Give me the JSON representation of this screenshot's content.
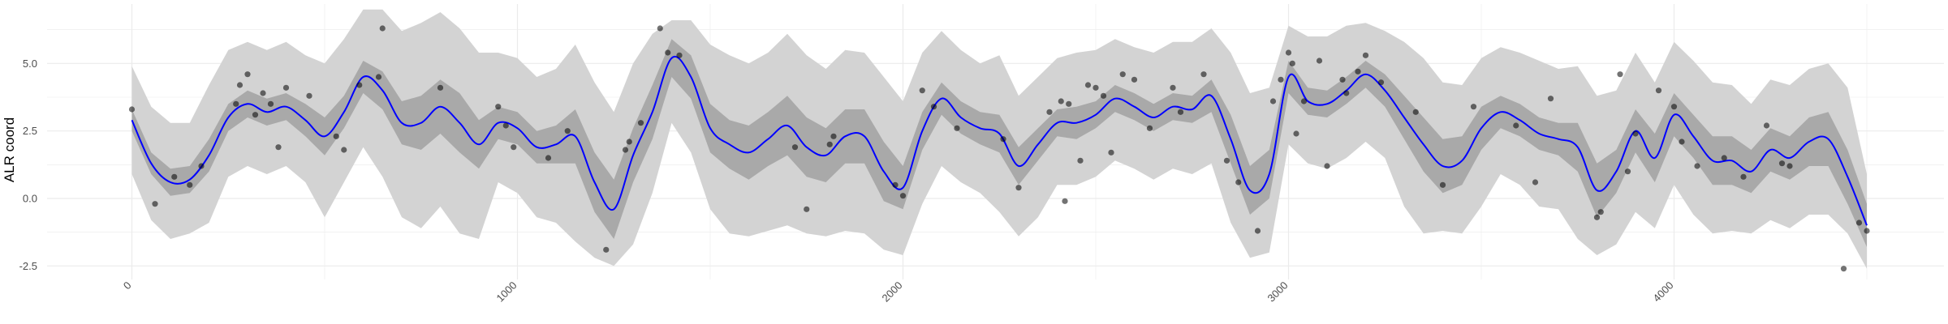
{
  "chart_data": {
    "type": "line",
    "xlabel": "",
    "ylabel": "ALR coord",
    "xlim": [
      -220,
      4700
    ],
    "ylim": [
      -3.0,
      7.2
    ],
    "x_ticks": [
      0,
      1000,
      2000,
      3000,
      4000
    ],
    "x_tick_labels": [
      "0",
      "1000",
      "2000",
      "3000",
      "4000"
    ],
    "y_ticks": [
      -2.5,
      0.0,
      2.5,
      5.0
    ],
    "y_tick_labels": [
      "-2.5",
      "0.0",
      "2.5",
      "5.0"
    ],
    "grid": true,
    "legend": "none",
    "colors": {
      "mean_line": "#0000ff",
      "inner_band": "#a9a9a9",
      "outer_band": "#d3d3d3",
      "points": "#000000",
      "grid": "#ebebeb"
    },
    "series": [
      {
        "role": "posterior-mean",
        "x": [
          0,
          50,
          100,
          150,
          200,
          250,
          300,
          350,
          400,
          450,
          500,
          550,
          600,
          650,
          700,
          750,
          800,
          850,
          900,
          950,
          1000,
          1050,
          1100,
          1150,
          1200,
          1250,
          1300,
          1350,
          1400,
          1450,
          1500,
          1550,
          1600,
          1650,
          1700,
          1750,
          1800,
          1850,
          1900,
          1950,
          2000,
          2050,
          2100,
          2150,
          2200,
          2250,
          2300,
          2350,
          2400,
          2450,
          2500,
          2550,
          2600,
          2650,
          2700,
          2750,
          2800,
          2850,
          2900,
          2950,
          3000,
          3050,
          3100,
          3150,
          3200,
          3250,
          3300,
          3350,
          3400,
          3450,
          3500,
          3550,
          3600,
          3650,
          3700,
          3750,
          3800,
          3850,
          3900,
          3950,
          4000,
          4050,
          4100,
          4150,
          4200,
          4250,
          4300,
          4350,
          4400,
          4450,
          4500
        ],
        "mean": [
          2.9,
          1.3,
          0.6,
          0.7,
          1.6,
          3.0,
          3.5,
          3.2,
          3.4,
          2.9,
          2.3,
          3.2,
          4.5,
          4.0,
          2.8,
          2.8,
          3.4,
          2.8,
          2.0,
          2.8,
          2.6,
          1.9,
          2.0,
          2.3,
          0.6,
          -0.4,
          1.6,
          3.2,
          5.2,
          4.5,
          2.6,
          2.0,
          1.7,
          2.2,
          2.7,
          1.9,
          1.6,
          2.3,
          2.3,
          1.0,
          0.4,
          2.5,
          3.7,
          3.0,
          2.6,
          2.4,
          1.2,
          2.0,
          2.8,
          2.8,
          3.1,
          3.7,
          3.4,
          3.0,
          3.4,
          3.3,
          3.8,
          2.2,
          0.3,
          0.9,
          4.5,
          3.6,
          3.5,
          4.0,
          4.6,
          4.0,
          3.0,
          2.0,
          1.2,
          1.4,
          2.6,
          3.2,
          2.9,
          2.4,
          2.2,
          1.9,
          0.3,
          1.0,
          2.5,
          1.5,
          3.1,
          2.3,
          1.4,
          1.4,
          1.0,
          1.8,
          1.5,
          2.1,
          2.2,
          0.8,
          -1.0
        ],
        "inner_lower": [
          2.5,
          0.9,
          0.1,
          0.2,
          1.0,
          2.5,
          3.0,
          2.7,
          2.9,
          2.3,
          1.6,
          2.6,
          3.9,
          3.3,
          2.0,
          1.8,
          2.4,
          1.7,
          1.1,
          2.2,
          2.0,
          1.3,
          1.3,
          1.3,
          -0.5,
          -1.5,
          0.6,
          2.2,
          4.5,
          3.7,
          1.7,
          1.1,
          0.7,
          1.2,
          1.6,
          0.8,
          0.6,
          1.3,
          1.3,
          -0.1,
          -0.4,
          1.8,
          3.1,
          2.4,
          2.0,
          1.7,
          0.5,
          1.4,
          2.3,
          2.2,
          2.6,
          3.2,
          2.9,
          2.5,
          2.9,
          2.8,
          3.2,
          1.3,
          -0.6,
          0.0,
          3.9,
          3.1,
          3.0,
          3.5,
          4.1,
          3.4,
          2.2,
          1.0,
          0.2,
          0.5,
          1.8,
          2.6,
          2.3,
          1.8,
          1.6,
          1.0,
          -0.7,
          0.2,
          1.7,
          0.6,
          2.3,
          1.5,
          0.5,
          0.5,
          0.2,
          1.0,
          0.7,
          1.2,
          1.2,
          -0.2,
          -1.8
        ],
        "inner_upper": [
          3.3,
          1.7,
          1.1,
          1.2,
          2.2,
          3.5,
          4.0,
          3.7,
          3.9,
          3.5,
          3.0,
          3.8,
          5.1,
          4.7,
          3.6,
          3.8,
          4.4,
          3.9,
          2.9,
          3.4,
          3.2,
          2.5,
          2.7,
          3.3,
          1.7,
          0.7,
          2.6,
          4.2,
          5.9,
          5.3,
          3.5,
          2.9,
          2.7,
          3.2,
          3.8,
          3.0,
          2.6,
          3.3,
          3.3,
          2.1,
          1.2,
          3.2,
          4.3,
          3.6,
          3.2,
          3.1,
          1.9,
          2.6,
          3.3,
          3.4,
          3.6,
          4.2,
          3.9,
          3.5,
          3.9,
          3.8,
          4.4,
          3.1,
          1.2,
          1.8,
          5.1,
          4.1,
          4.0,
          4.5,
          5.1,
          4.6,
          3.8,
          3.0,
          2.2,
          2.3,
          3.4,
          3.8,
          3.5,
          3.0,
          2.8,
          2.8,
          1.3,
          1.8,
          3.3,
          2.4,
          3.9,
          3.1,
          2.3,
          2.3,
          1.8,
          2.6,
          2.3,
          3.0,
          3.2,
          1.8,
          -0.2
        ],
        "outer_lower": [
          0.9,
          -0.8,
          -1.5,
          -1.3,
          -0.9,
          0.8,
          1.2,
          0.9,
          1.2,
          0.6,
          -0.7,
          0.6,
          1.9,
          0.8,
          -0.7,
          -1.1,
          -0.3,
          -1.3,
          -1.5,
          0.6,
          0.2,
          -0.7,
          -0.9,
          -1.6,
          -2.2,
          -2.5,
          -1.7,
          0.2,
          2.8,
          1.7,
          -0.4,
          -1.3,
          -1.4,
          -1.2,
          -1.0,
          -1.3,
          -1.4,
          -1.2,
          -1.3,
          -1.9,
          -2.1,
          -0.2,
          1.2,
          0.6,
          0.2,
          -0.5,
          -1.4,
          -0.7,
          0.5,
          0.5,
          0.8,
          1.4,
          1.1,
          0.7,
          1.1,
          0.9,
          1.3,
          -0.9,
          -2.2,
          -2.0,
          2.0,
          1.3,
          1.1,
          1.5,
          2.1,
          1.5,
          -0.3,
          -1.3,
          -1.2,
          -1.3,
          -0.3,
          0.9,
          0.5,
          -0.3,
          -0.4,
          -1.5,
          -2.1,
          -1.7,
          -0.5,
          -1.1,
          0.5,
          -0.6,
          -1.3,
          -1.2,
          -1.3,
          -0.8,
          -1.1,
          -0.6,
          -0.6,
          -1.3,
          -2.6
        ],
        "outer_upper": [
          4.9,
          3.4,
          2.8,
          2.8,
          4.2,
          5.5,
          5.8,
          5.5,
          5.8,
          5.3,
          5.0,
          5.9,
          7.0,
          7.0,
          6.2,
          6.5,
          6.9,
          6.3,
          5.4,
          5.4,
          5.2,
          4.5,
          4.8,
          5.7,
          4.3,
          3.2,
          5.0,
          6.1,
          6.6,
          6.6,
          5.7,
          5.3,
          5.0,
          5.4,
          6.1,
          5.3,
          4.8,
          5.5,
          5.4,
          4.5,
          3.6,
          5.4,
          6.2,
          5.5,
          5.0,
          5.3,
          3.8,
          4.5,
          5.2,
          5.4,
          5.5,
          5.9,
          5.6,
          5.4,
          5.8,
          5.8,
          6.3,
          5.4,
          3.9,
          4.1,
          6.4,
          6.0,
          6.0,
          6.4,
          6.5,
          6.2,
          5.8,
          5.2,
          4.3,
          4.2,
          5.2,
          5.6,
          5.4,
          5.1,
          4.8,
          4.9,
          3.8,
          4.0,
          5.4,
          4.3,
          5.8,
          5.1,
          4.3,
          4.2,
          3.5,
          4.4,
          4.2,
          4.8,
          5.0,
          4.1,
          0.9
        ]
      },
      {
        "role": "observations",
        "type": "scatter",
        "x": [
          0,
          60,
          110,
          150,
          180,
          270,
          280,
          300,
          320,
          340,
          360,
          380,
          400,
          460,
          530,
          550,
          590,
          640,
          650,
          800,
          950,
          970,
          990,
          1080,
          1130,
          1230,
          1280,
          1290,
          1320,
          1370,
          1390,
          1420,
          1720,
          1750,
          1810,
          1820,
          1980,
          2000,
          2050,
          2080,
          2140,
          2260,
          2300,
          2380,
          2410,
          2420,
          2430,
          2460,
          2480,
          2500,
          2520,
          2540,
          2570,
          2600,
          2640,
          2700,
          2720,
          2780,
          2840,
          2870,
          2920,
          2960,
          2980,
          3000,
          3010,
          3020,
          3040,
          3080,
          3100,
          3140,
          3150,
          3180,
          3200,
          3240,
          3330,
          3400,
          3480,
          3590,
          3640,
          3680,
          3800,
          3810,
          3860,
          3880,
          3900,
          3960,
          4000,
          4020,
          4060,
          4130,
          4180,
          4240,
          4280,
          4300,
          4440,
          4480,
          4500
        ],
        "y": [
          3.3,
          -0.2,
          0.8,
          0.5,
          1.2,
          3.5,
          4.2,
          4.6,
          3.1,
          3.9,
          3.5,
          1.9,
          4.1,
          3.8,
          2.3,
          1.8,
          4.2,
          4.5,
          6.3,
          4.1,
          3.4,
          2.7,
          1.9,
          1.5,
          2.5,
          -1.9,
          1.8,
          2.1,
          2.8,
          6.3,
          5.4,
          5.3,
          1.9,
          -0.4,
          2.0,
          2.3,
          0.5,
          0.1,
          4.0,
          3.4,
          2.6,
          2.2,
          0.4,
          3.2,
          3.6,
          -0.1,
          3.5,
          1.4,
          4.2,
          4.1,
          3.8,
          1.7,
          4.6,
          4.4,
          2.6,
          4.1,
          3.2,
          4.6,
          1.4,
          0.6,
          -1.2,
          3.6,
          4.4,
          5.4,
          5.0,
          2.4,
          3.6,
          5.1,
          1.2,
          4.4,
          3.9,
          4.7,
          5.3,
          4.3,
          3.2,
          0.5,
          3.4,
          2.7,
          0.6,
          3.7,
          -0.7,
          -0.5,
          4.6,
          1.0,
          2.4,
          4.0,
          3.4,
          2.1,
          1.2,
          1.5,
          0.8,
          2.7,
          1.3,
          1.2,
          -2.6,
          -0.9,
          -1.2
        ]
      }
    ]
  }
}
